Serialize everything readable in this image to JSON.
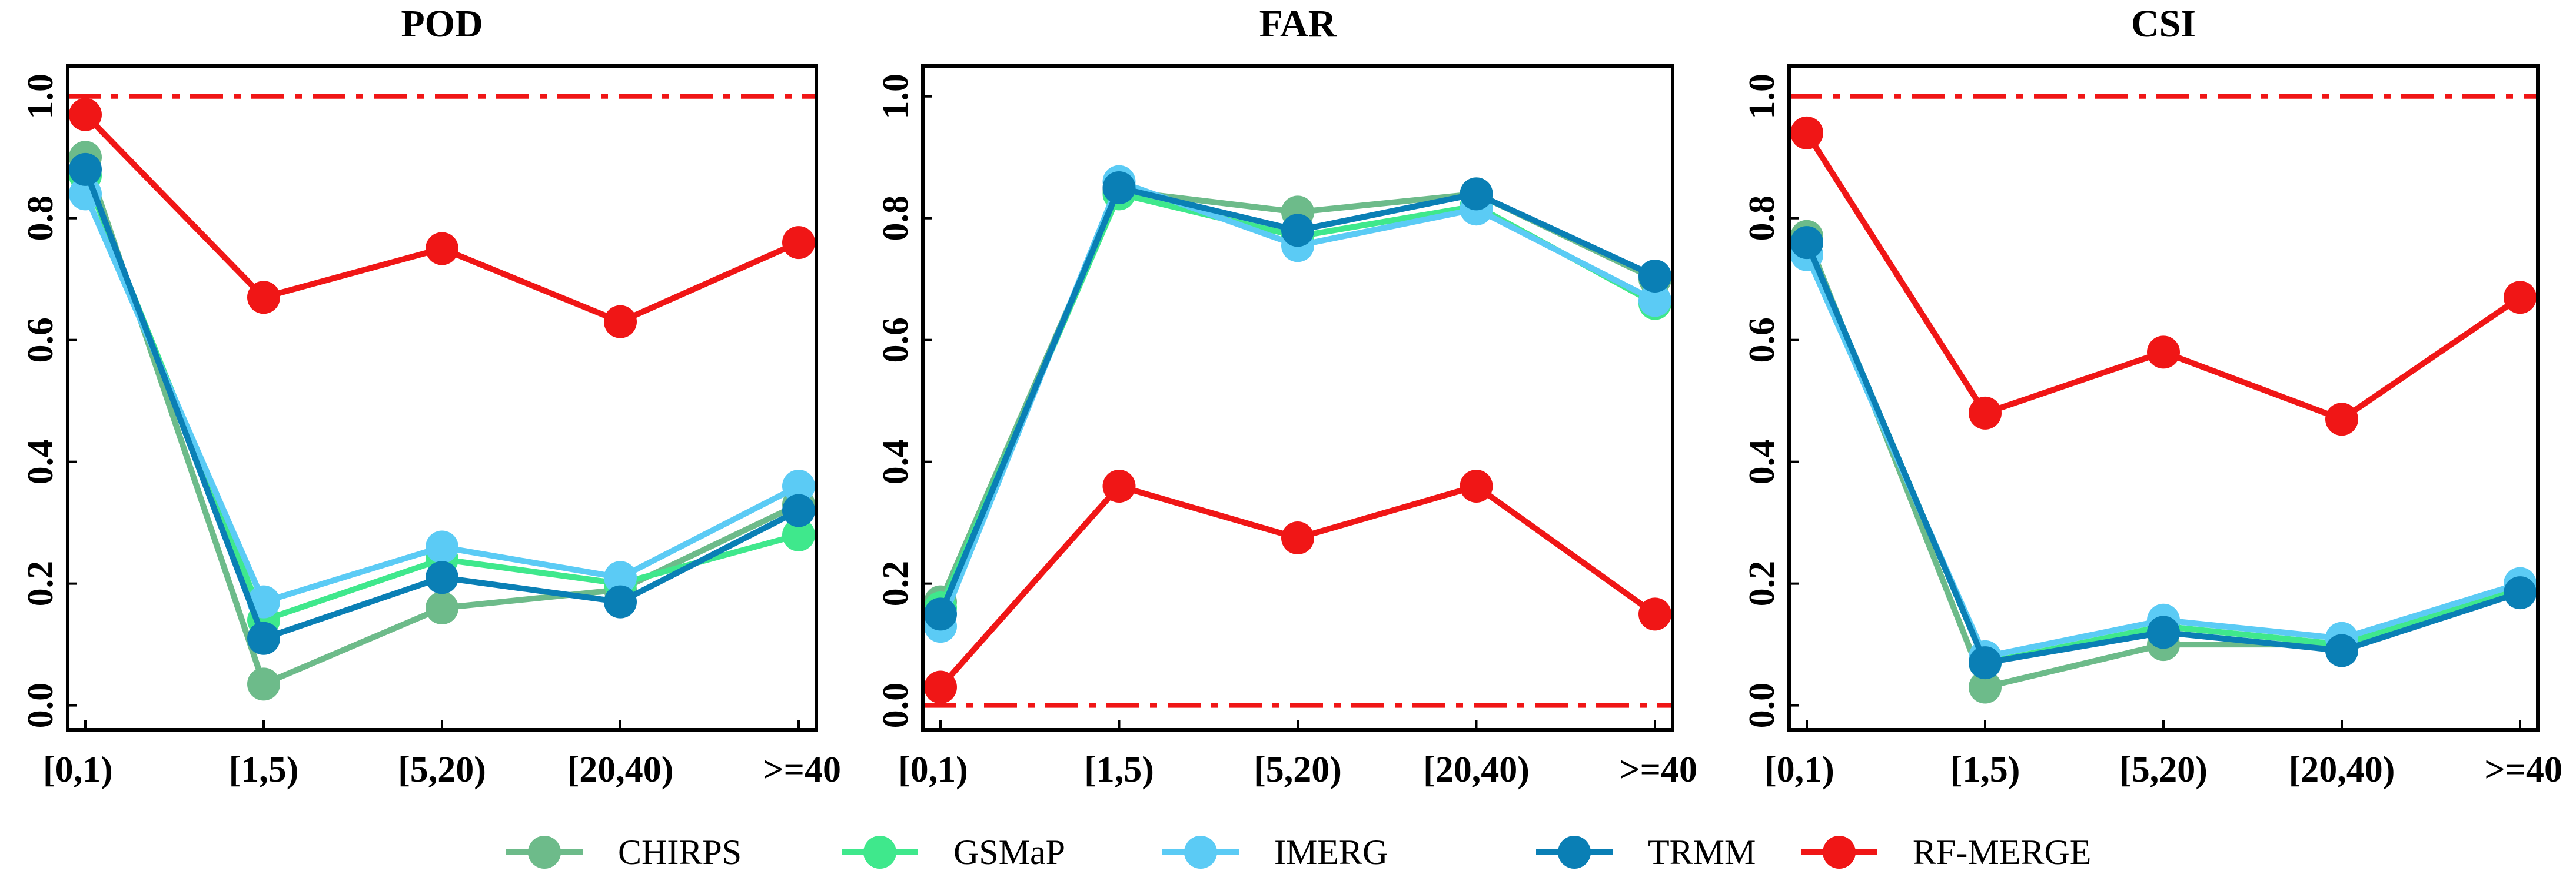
{
  "legend": [
    {
      "name": "CHIRPS",
      "color": "#6dbb8a"
    },
    {
      "name": "GSMaP",
      "color": "#3fe88c"
    },
    {
      "name": "IMERG",
      "color": "#5bcbf5"
    },
    {
      "name": "TRMM",
      "color": "#0a7fb5"
    },
    {
      "name": "RF-MERGE",
      "color": "#f01616"
    }
  ],
  "chart_data": [
    {
      "type": "line",
      "title": "POD",
      "categories": [
        "[0,1)",
        "[1,5)",
        "[5,20)",
        "[20,40)",
        ">=40"
      ],
      "ylim": [
        -0.04,
        1.05
      ],
      "yticks": [
        "0.0",
        "0.2",
        "0.4",
        "0.6",
        "0.8",
        "1.0"
      ],
      "reference_line": 1.0,
      "series": [
        {
          "name": "CHIRPS",
          "values": [
            0.9,
            0.035,
            0.16,
            0.19,
            0.33
          ]
        },
        {
          "name": "GSMaP",
          "values": [
            0.87,
            0.14,
            0.24,
            0.2,
            0.28
          ]
        },
        {
          "name": "IMERG",
          "values": [
            0.84,
            0.17,
            0.26,
            0.21,
            0.36
          ]
        },
        {
          "name": "TRMM",
          "values": [
            0.88,
            0.11,
            0.21,
            0.17,
            0.32
          ]
        },
        {
          "name": "RF-MERGE",
          "values": [
            0.97,
            0.67,
            0.75,
            0.63,
            0.76
          ]
        }
      ]
    },
    {
      "type": "line",
      "title": "FAR",
      "categories": [
        "[0,1)",
        "[1,5)",
        "[5,20)",
        "[20,40)",
        ">=40"
      ],
      "ylim": [
        -0.04,
        1.05
      ],
      "yticks": [
        "0.0",
        "0.2",
        "0.4",
        "0.6",
        "0.8",
        "1.0"
      ],
      "reference_line": 0.0,
      "series": [
        {
          "name": "CHIRPS",
          "values": [
            0.17,
            0.845,
            0.81,
            0.84,
            0.7
          ]
        },
        {
          "name": "GSMaP",
          "values": [
            0.16,
            0.84,
            0.77,
            0.82,
            0.66
          ]
        },
        {
          "name": "IMERG",
          "values": [
            0.13,
            0.86,
            0.755,
            0.815,
            0.665
          ]
        },
        {
          "name": "TRMM",
          "values": [
            0.15,
            0.85,
            0.78,
            0.84,
            0.705
          ]
        },
        {
          "name": "RF-MERGE",
          "values": [
            0.03,
            0.36,
            0.275,
            0.36,
            0.15
          ]
        }
      ]
    },
    {
      "type": "line",
      "title": "CSI",
      "categories": [
        "[0,1)",
        "[1,5)",
        "[5,20)",
        "[20,40)",
        ">=40"
      ],
      "ylim": [
        -0.04,
        1.05
      ],
      "yticks": [
        "0.0",
        "0.2",
        "0.4",
        "0.6",
        "0.8",
        "1.0"
      ],
      "reference_line": 1.0,
      "series": [
        {
          "name": "CHIRPS",
          "values": [
            0.77,
            0.03,
            0.1,
            0.1,
            0.19
          ]
        },
        {
          "name": "GSMaP",
          "values": [
            0.76,
            0.07,
            0.13,
            0.1,
            0.19
          ]
        },
        {
          "name": "IMERG",
          "values": [
            0.74,
            0.08,
            0.14,
            0.11,
            0.2
          ]
        },
        {
          "name": "TRMM",
          "values": [
            0.76,
            0.07,
            0.12,
            0.09,
            0.185
          ]
        },
        {
          "name": "RF-MERGE",
          "values": [
            0.94,
            0.48,
            0.58,
            0.47,
            0.67
          ]
        }
      ]
    }
  ]
}
